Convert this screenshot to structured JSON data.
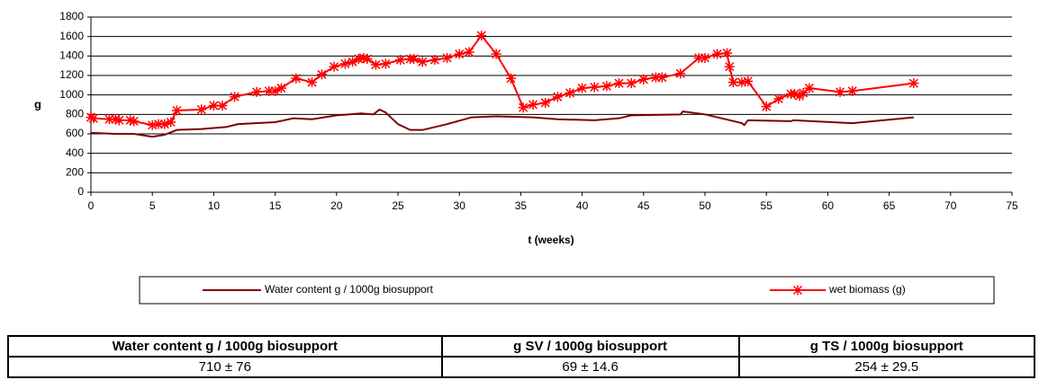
{
  "chart_data": {
    "type": "line",
    "xlabel": "t (weeks)",
    "ylabel": "g",
    "xlim": [
      0,
      75
    ],
    "xticks": [
      0,
      5,
      10,
      15,
      20,
      25,
      30,
      35,
      40,
      45,
      50,
      55,
      60,
      65,
      70,
      75
    ],
    "ylim": [
      0,
      1800
    ],
    "yticks": [
      0,
      200,
      400,
      600,
      800,
      1000,
      1200,
      1400,
      1600,
      1800
    ],
    "grid": true,
    "legend": "bottom",
    "series": [
      {
        "name": "Water content g / 1000g biosupport",
        "color": "#800000",
        "marker": null,
        "x": [
          0,
          2,
          3.5,
          5,
          6,
          7,
          9,
          11,
          12,
          15,
          16.5,
          18,
          20,
          22,
          23,
          23.5,
          24,
          25,
          26,
          27,
          29,
          31,
          33,
          36,
          38,
          41,
          43,
          44,
          48,
          48.2,
          50,
          53,
          53.2,
          53.5,
          57,
          57.2,
          62,
          67
        ],
        "values": [
          610,
          600,
          600,
          570,
          590,
          640,
          650,
          670,
          700,
          720,
          760,
          750,
          790,
          810,
          800,
          850,
          820,
          700,
          640,
          640,
          700,
          770,
          780,
          770,
          750,
          740,
          760,
          790,
          800,
          830,
          800,
          710,
          690,
          740,
          730,
          740,
          710,
          770
        ]
      },
      {
        "name": "wet biomass (g)",
        "color": "#ff0000",
        "marker": "asterisk",
        "x": [
          0,
          0.2,
          1.5,
          2,
          2.3,
          3.2,
          3.5,
          5,
          5.5,
          6,
          6.5,
          7,
          9,
          10,
          10.7,
          11.7,
          13.5,
          14.5,
          15,
          15.5,
          16.7,
          18,
          18.8,
          19.8,
          20.7,
          21.3,
          21.8,
          22.2,
          22.5,
          23.2,
          24,
          25.2,
          26,
          26.3,
          27,
          28,
          29,
          30,
          30.8,
          31.8,
          33,
          34.2,
          35.2,
          36,
          37,
          38,
          39,
          40,
          41,
          42,
          43,
          44,
          45,
          46,
          46.5,
          48,
          49.5,
          50,
          51,
          51.8,
          52,
          52.3,
          53,
          53.5,
          55,
          56,
          57,
          57.3,
          57.7,
          58,
          58.5,
          61,
          62,
          67
        ],
        "values": [
          770,
          760,
          750,
          750,
          740,
          740,
          730,
          690,
          700,
          700,
          720,
          840,
          850,
          890,
          890,
          980,
          1030,
          1040,
          1040,
          1070,
          1170,
          1130,
          1210,
          1290,
          1320,
          1340,
          1370,
          1380,
          1370,
          1310,
          1320,
          1360,
          1370,
          1370,
          1340,
          1360,
          1380,
          1420,
          1440,
          1610,
          1420,
          1170,
          870,
          900,
          920,
          980,
          1020,
          1070,
          1080,
          1090,
          1120,
          1120,
          1160,
          1180,
          1180,
          1220,
          1380,
          1380,
          1420,
          1430,
          1290,
          1130,
          1130,
          1140,
          880,
          960,
          1010,
          1010,
          990,
          1020,
          1070,
          1030,
          1040,
          1120
        ]
      }
    ]
  },
  "table": {
    "headers": [
      "Water content g / 1000g biosupport",
      "g SV / 1000g biosupport",
      "g TS / 1000g biosupport"
    ],
    "rows": [
      [
        "710 ± 76",
        "69 ± 14.6",
        "254 ± 29.5"
      ]
    ]
  }
}
